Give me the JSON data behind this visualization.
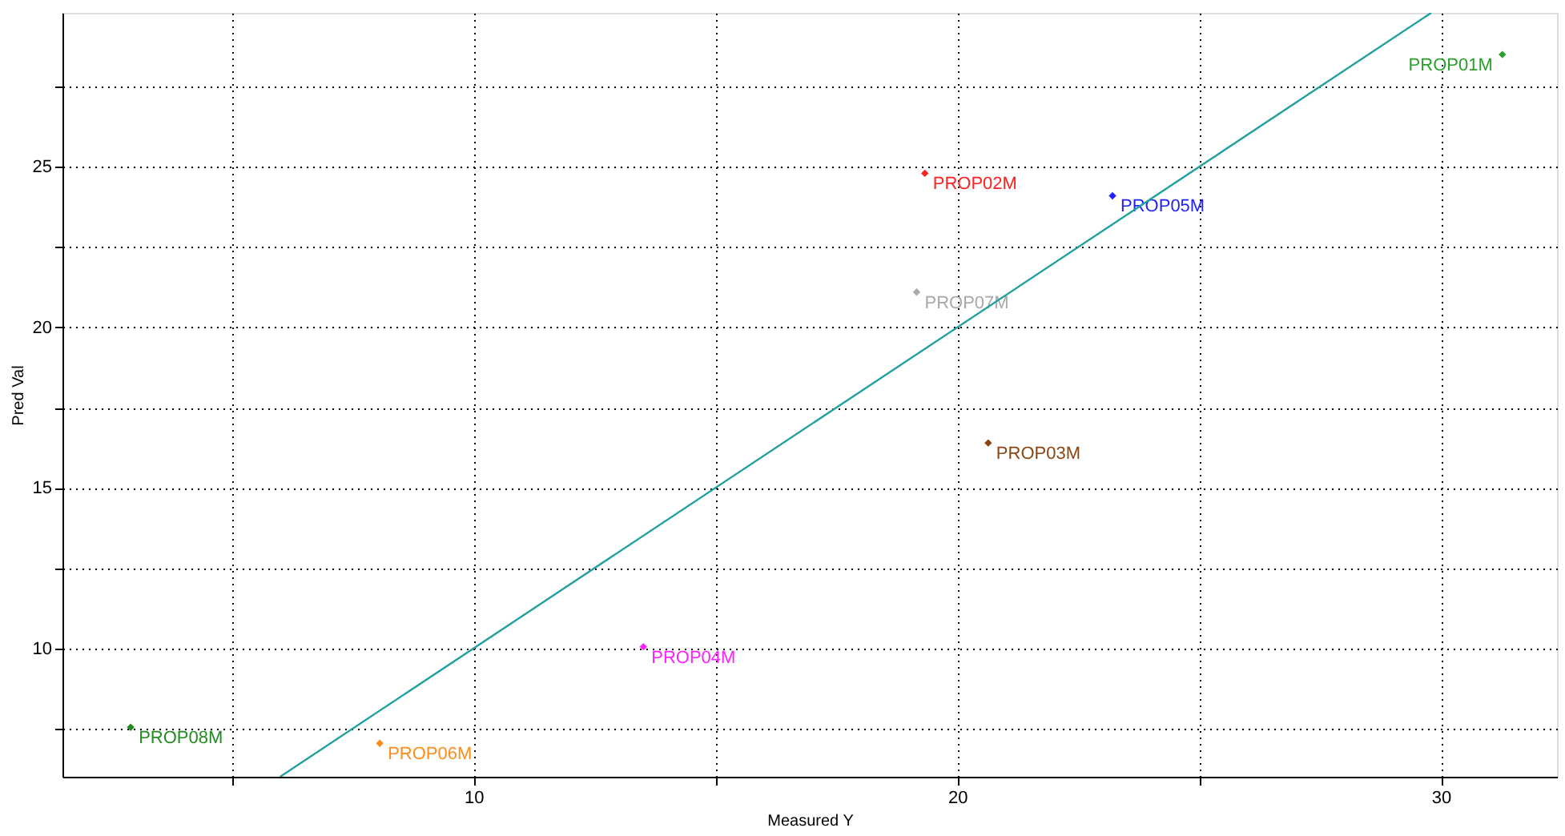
{
  "chart_data": {
    "type": "scatter",
    "xlabel": "Measured Y",
    "ylabel": "Pred Val",
    "xlim": [
      1.5,
      32.4
    ],
    "ylim": [
      6,
      29.8
    ],
    "xticks": [
      {
        "value": 5,
        "label": null
      },
      10,
      {
        "value": 15,
        "label": null
      },
      20,
      {
        "value": 25,
        "label": null
      },
      30
    ],
    "yticks": [
      {
        "value": 7.5,
        "label": null
      },
      10,
      {
        "value": 12.5,
        "label": null
      },
      15,
      {
        "value": 17.5,
        "label": null
      },
      20,
      {
        "value": 22.5,
        "label": null
      },
      25,
      {
        "value": 27.5,
        "label": null
      }
    ],
    "grid": true,
    "marker": "diamond",
    "series": [
      {
        "name": "PROP01M",
        "color": "#2ca02c",
        "x": [
          31.27
        ],
        "values": [
          28.5
        ]
      },
      {
        "name": "PROP02M",
        "color": "#ff2020",
        "x": [
          19.33
        ],
        "values": [
          24.8
        ]
      },
      {
        "name": "PROP05M",
        "color": "#1f1fff",
        "x": [
          23.21
        ],
        "values": [
          24.1
        ]
      },
      {
        "name": "PROP07M",
        "color": "#a8a8a8",
        "x": [
          19.16
        ],
        "values": [
          21.1
        ]
      },
      {
        "name": "PROP03M",
        "color": "#8b4513",
        "x": [
          20.64
        ],
        "values": [
          16.4
        ]
      },
      {
        "name": "PROP04M",
        "color": "#ff20ff",
        "x": [
          13.51
        ],
        "values": [
          10.05
        ]
      },
      {
        "name": "PROP08M",
        "color": "#228b22",
        "x": [
          2.91
        ],
        "values": [
          7.54
        ]
      },
      {
        "name": "PROP06M",
        "color": "#ff8c1a",
        "x": [
          8.06
        ],
        "values": [
          7.04
        ]
      },
      {
        "type": "line",
        "color": "#20a0a0",
        "x": [
          6.0,
          29.8
        ],
        "values": [
          6.0,
          29.8
        ],
        "line_style": "solid",
        "marker": "none"
      }
    ]
  }
}
